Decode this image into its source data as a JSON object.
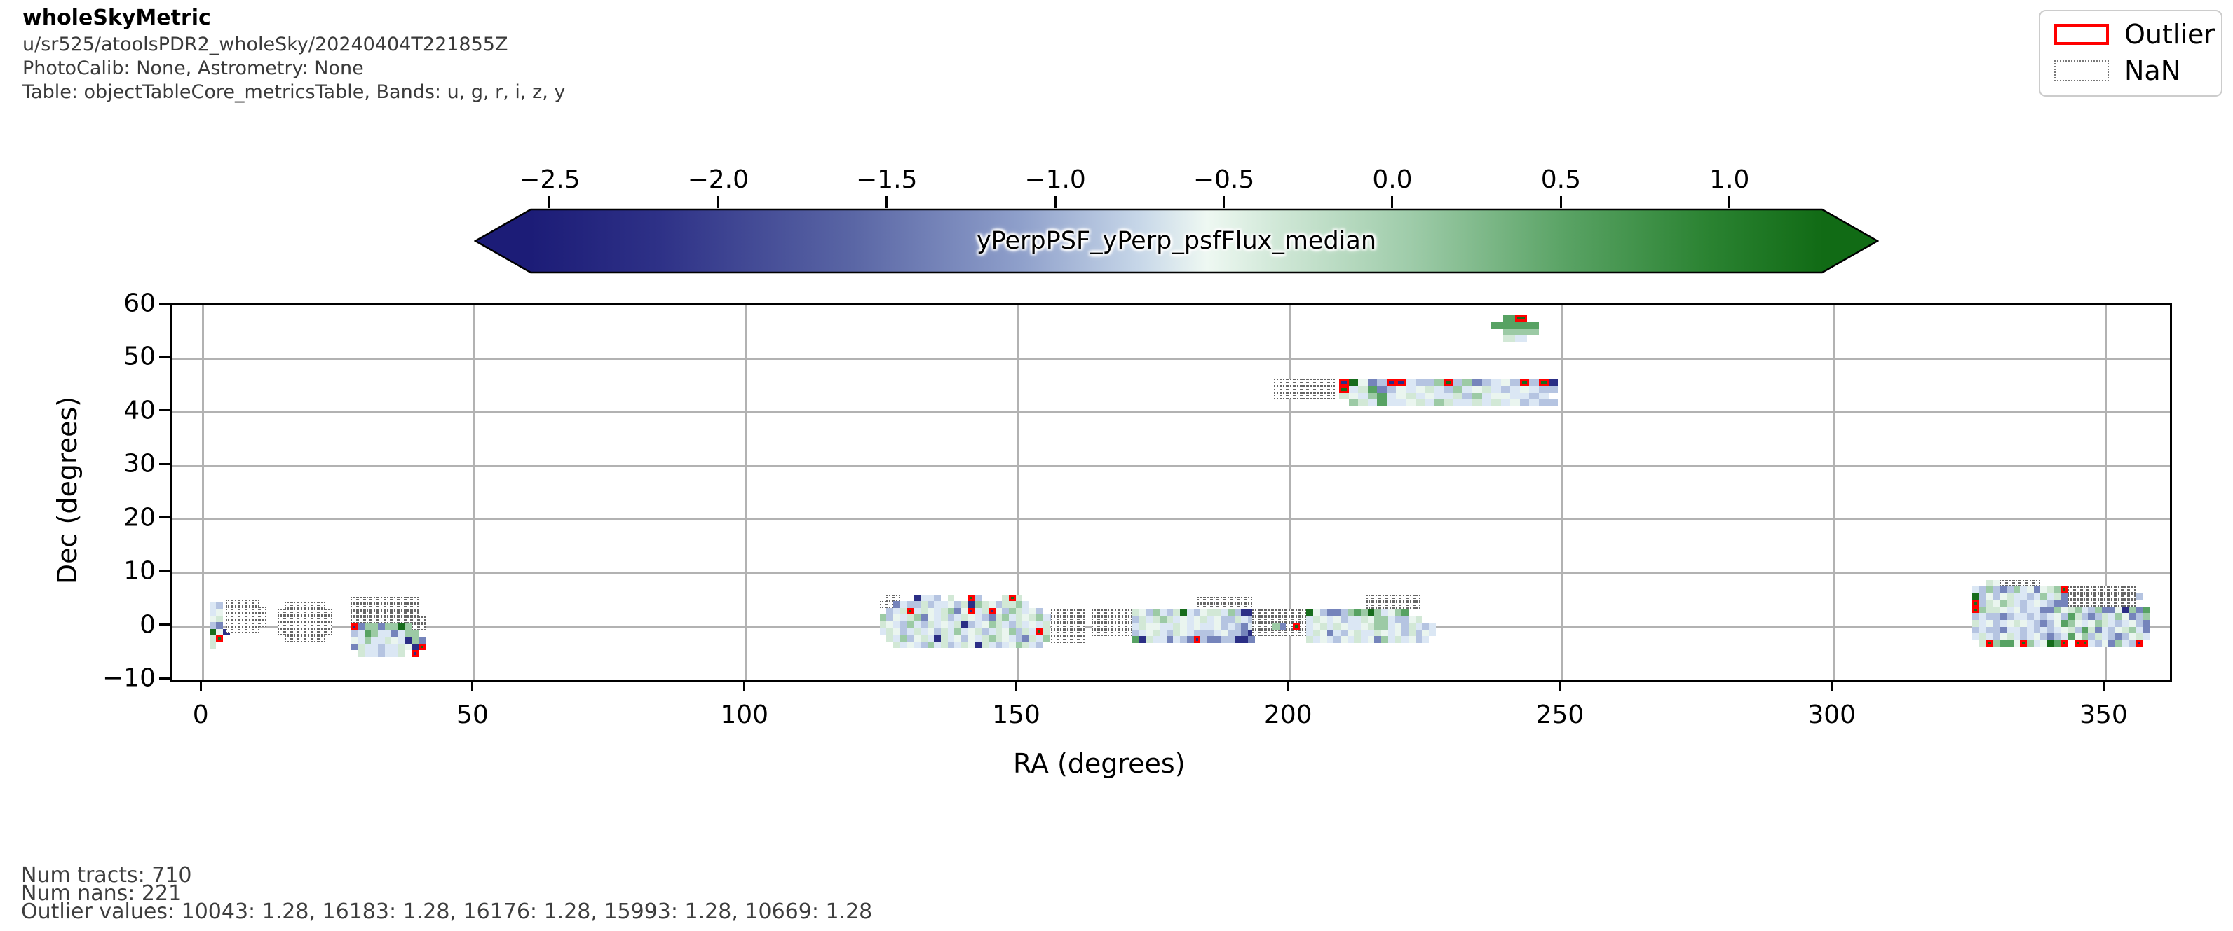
{
  "header": {
    "title": "wholeSkyMetric",
    "line1": "u/sr525/atoolsPDR2_wholeSky/20240404T221855Z",
    "line2": "PhotoCalib: None, Astrometry: None",
    "line3": "Table: objectTableCore_metricsTable, Bands: u, g, r, i, z, y"
  },
  "legend": {
    "outlier_label": "Outlier",
    "nan_label": "NaN",
    "outlier_color": "#ff0000",
    "nan_border_color": "#777777"
  },
  "footer": {
    "line1": "Num tracts: 710",
    "line2": "Num nans: 221",
    "line3": "Outlier values: 10043: 1.28, 16183: 1.28, 16176: 1.28, 15993: 1.28, 10669: 1.28"
  },
  "chart_data": {
    "type": "heatmap",
    "title": "yPerpPSF_yPerp_psfFlux_median",
    "xlabel": "RA (degrees)",
    "ylabel": "Dec (degrees)",
    "x_range": [
      -5.7,
      361.8
    ],
    "y_range": [
      -10,
      60
    ],
    "xticks": [
      {
        "v": 0,
        "label": "0"
      },
      {
        "v": 50,
        "label": "50"
      },
      {
        "v": 100,
        "label": "100"
      },
      {
        "v": 150,
        "label": "150"
      },
      {
        "v": 200,
        "label": "200"
      },
      {
        "v": 250,
        "label": "250"
      },
      {
        "v": 300,
        "label": "300"
      },
      {
        "v": 350,
        "label": "350"
      }
    ],
    "yticks": [
      {
        "v": 60,
        "label": "60"
      },
      {
        "v": 50,
        "label": "50"
      },
      {
        "v": 40,
        "label": "40"
      },
      {
        "v": 30,
        "label": "30"
      },
      {
        "v": 20,
        "label": "20"
      },
      {
        "v": 10,
        "label": "10"
      },
      {
        "v": 0,
        "label": "0"
      },
      {
        "v": -10,
        "label": "−10"
      }
    ],
    "grid": true,
    "grid_color": "#b2b2b2",
    "colorbar": {
      "label": "yPerpPSF_yPerp_psfFlux_median",
      "vmin": -2.56,
      "vmax": 1.28,
      "extend": "both",
      "white_center": -0.55,
      "ticks": [
        {
          "v": -2.5,
          "label": "−2.5"
        },
        {
          "v": -2.0,
          "label": "−2.0"
        },
        {
          "v": -1.5,
          "label": "−1.5"
        },
        {
          "v": -1.0,
          "label": "−1.0"
        },
        {
          "v": -0.5,
          "label": "−0.5"
        },
        {
          "v": 0.0,
          "label": "0.0"
        },
        {
          "v": 0.5,
          "label": "0.5"
        },
        {
          "v": 1.0,
          "label": "1.0"
        }
      ],
      "gradient": [
        [
          0,
          "#1c1c77"
        ],
        [
          0.1,
          "#2e3187"
        ],
        [
          0.25,
          "#5a66a5"
        ],
        [
          0.38,
          "#8fa0cb"
        ],
        [
          0.47,
          "#c6d6e8"
        ],
        [
          0.5236,
          "#eef8f2"
        ],
        [
          0.58,
          "#cfe7d6"
        ],
        [
          0.68,
          "#9fccaa"
        ],
        [
          0.8,
          "#5aa365"
        ],
        [
          0.91,
          "#2b8332"
        ],
        [
          1,
          "#116b15"
        ]
      ]
    },
    "palette": {
      "1": "#dbe7f4",
      "2": "#b5c4e1",
      "3": "#7584bb",
      "4": "#2b2e85",
      "w": "#eaf5ef",
      "5": "#d2e8d6",
      "6": "#9ccaa5",
      "7": "#57a263",
      "8": "#176c1c"
    },
    "outlier_codes": {
      "A": "8",
      "B": "4"
    },
    "nan_code": "n",
    "cell_h_deg": 1.25,
    "patches": [
      {
        "id": "left-small",
        "ra0": 1.2,
        "dec0": 4.6,
        "cw": 1.25,
        "rows": [
          "12.",
          "1w.",
          "w5.",
          "23.",
          "8w4",
          "5A.",
          "5.."
        ]
      },
      {
        "id": "left-nan-a",
        "ra0": 4.2,
        "dec0": 5.0,
        "cw": 1.25,
        "rows": [
          "nnnnn.",
          "nnnnnn",
          "nnnnnn",
          "nnnnnn",
          "nnnnn."
        ]
      },
      {
        "id": "left-nan-b",
        "ra0": 13.8,
        "dec0": 4.6,
        "cw": 1.25,
        "rows": [
          ".nnnnnn.",
          "nnnnnnnn",
          "nnnnnnnn",
          "nnnnnnnn",
          "nnnnnnnn",
          ".nnnnnn."
        ]
      },
      {
        "id": "left-block",
        "ra0": 27.2,
        "dec0": 5.6,
        "cw": 1.25,
        "rows": [
          "nnnnnnnnnn.",
          "nnnnnnnnnn.",
          "nnnnnnnnnn.",
          "nnnnnnnnnnn",
          "B36636686nn",
          "2176113166.",
          "w16115w1463",
          "35112115w4A",
          ".5112115.B."
        ]
      },
      {
        "id": "mid-a",
        "ra0": 124.5,
        "dec0": 6.0,
        "cw": 1.25,
        "rows": [
          ".nn..4112.5..A2...5A5.....",
          "nn31225211w25465w25561....",
          ".215A15w1563wB15Bw2651w2..",
          "62w1563w15215w1235615w5612",
          "5w1261251w15421w651251w15.",
          "15w2151w25161w5215w6251A5.",
          ".5162w51451w2w1565w123516.",
          "..51w12615215w45121w6512.."
        ]
      },
      {
        "id": "mid-a-nan",
        "ra0": 156.0,
        "dec0": 3.2,
        "cw": 1.25,
        "rows": [
          "nnnnn",
          "nnnnn",
          "nnnnn",
          "nnnnn",
          "nnnnn"
        ]
      },
      {
        "id": "mid-b-nan-top",
        "ra0": 183.0,
        "dec0": 5.6,
        "cw": 1.25,
        "rows": [
          "nnnnnnnn",
          "nnnnnnnn"
        ]
      },
      {
        "id": "mid-b",
        "ra0": 163.5,
        "dec0": 3.2,
        "cw": 1.25,
        "rows": [
          "nnnnnn5w26125812w5516244",
          "nnnnnn2515651w1w51w22512",
          "nnnnnn15ww115w1w11w21231",
          "nnnnnn21w5125w12221w2234",
          "......745113123B23322443"
        ]
      },
      {
        "id": "mid-c-nan-top",
        "ra0": 214.0,
        "dec0": 5.9,
        "cw": 1.25,
        "rows": [
          "nnnnnnnn",
          "nnnnnnnn"
        ]
      },
      {
        "id": "mid-c",
        "ra0": 193.0,
        "dec0": 3.2,
        "cw": 1.25,
        "rows": [
          "nnnnnnnn8w2332676861w67....",
          "nnnnnnnn15w1w2115w66122w5..",
          "nnn63nAn1w515w11w5661w25121",
          "nnnnnnnn15w312w5115w1w252w1",
          "........51w12w151w36151w21."
        ]
      },
      {
        "id": "stripe-nan",
        "ra0": 197.0,
        "dec0": 46.2,
        "cw": 1.25,
        "rows": [
          "nnnnnnnnn",
          "nnnnnnnnn",
          "nnnnnnnnn"
        ]
      },
      {
        "id": "stripe",
        "ra0": 209.0,
        "dec0": 46.2,
        "cw": 1.75,
        "rows": [
          "B8w32BB1226A26321w2A2A4",
          "A15732w1w51261w5121w122",
          "5w1671w51w115261ww1121.",
          ".651711w5165115151w2122"
        ]
      },
      {
        "id": "north-blob",
        "ra0": 237.0,
        "dec0": 58.2,
        "cw": 2.2,
        "rows": [
          ".7A.",
          "7777",
          ".666",
          ".51."
        ]
      },
      {
        "id": "right-block",
        "ra0": 325.5,
        "dec0": 8.75,
        "cw": 1.25,
        "rows": [
          "..5wnnnnnn................",
          "12623261w3w56Annnnnnnnnn..",
          "82w2w511216153nnnnnnnnnn2.",
          "A25w65121w1233nnnnnnnnnn..",
          "A655w1w211336w5612633w4637",
          "212232112121w275232516w326",
          "51w21w5w1232w76w1w65121w23",
          "2122311212121w5275312w5613",
          "1512w5121w23217w6251232w51",
          ".5A677wA61w87A.AA12w3612B."
        ]
      }
    ],
    "stats": {
      "num_tracts": 710,
      "num_nans": 221,
      "outlier_values": {
        "10043": 1.28,
        "16183": 1.28,
        "16176": 1.28,
        "15993": 1.28,
        "10669": 1.28
      }
    }
  }
}
